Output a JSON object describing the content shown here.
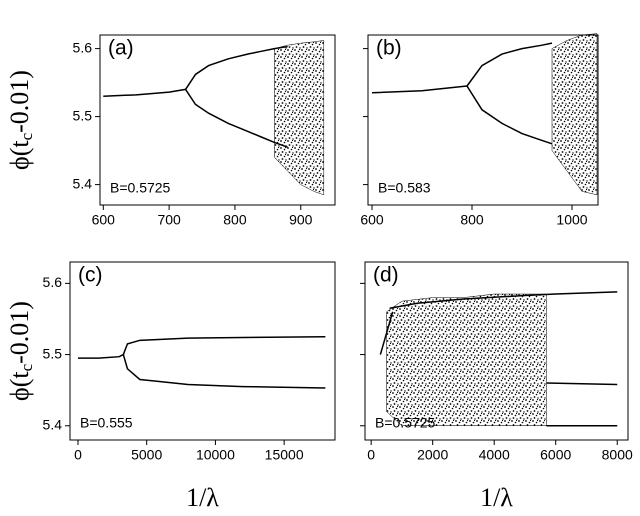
{
  "chart_data": [
    {
      "type": "line",
      "panel_label": "(a)",
      "annotation": "B=0.5725",
      "ylabel_parts": [
        "ϕ(t",
        "c",
        "-0.01)"
      ],
      "xlim": [
        595,
        952
      ],
      "ylim": [
        5.37,
        5.62
      ],
      "xticks": [
        600,
        700,
        800,
        900
      ],
      "yticks": [
        5.4,
        5.5,
        5.6
      ],
      "color": "#000000",
      "series": [
        {
          "x": [
            600,
            650,
            700,
            725
          ],
          "values": [
            5.53,
            5.532,
            5.536,
            5.54
          ]
        },
        {
          "x": [
            725,
            740,
            760,
            790,
            820,
            840,
            860,
            880
          ],
          "values": [
            5.54,
            5.562,
            5.575,
            5.585,
            5.592,
            5.596,
            5.6,
            5.603
          ]
        },
        {
          "x": [
            725,
            740,
            760,
            790,
            820,
            840,
            860,
            880
          ],
          "values": [
            5.54,
            5.518,
            5.505,
            5.49,
            5.478,
            5.47,
            5.462,
            5.455
          ]
        }
      ],
      "areas": [
        {
          "x": [
            860,
            880,
            900,
            920,
            935
          ],
          "upper": [
            5.6,
            5.605,
            5.608,
            5.61,
            5.612
          ],
          "lower": [
            5.44,
            5.42,
            5.4,
            5.39,
            5.385
          ]
        }
      ]
    },
    {
      "type": "line",
      "panel_label": "(b)",
      "annotation": "B=0.583",
      "xlim": [
        592,
        1052
      ],
      "ylim": [
        5.37,
        5.62
      ],
      "xticks": [
        600,
        800,
        1000
      ],
      "yticks": [
        5.4,
        5.5,
        5.6
      ],
      "color": "#000000",
      "series": [
        {
          "x": [
            600,
            700,
            790
          ],
          "values": [
            5.535,
            5.538,
            5.545
          ]
        },
        {
          "x": [
            790,
            820,
            860,
            900,
            940,
            960
          ],
          "values": [
            5.545,
            5.575,
            5.592,
            5.6,
            5.605,
            5.608
          ]
        },
        {
          "x": [
            790,
            820,
            860,
            900,
            940,
            960
          ],
          "values": [
            5.545,
            5.51,
            5.49,
            5.475,
            5.465,
            5.46
          ]
        }
      ],
      "areas": [
        {
          "x": [
            960,
            990,
            1020,
            1050
          ],
          "upper": [
            5.6,
            5.612,
            5.62,
            5.622
          ],
          "lower": [
            5.45,
            5.42,
            5.39,
            5.385
          ]
        }
      ]
    },
    {
      "type": "line",
      "panel_label": "(c)",
      "annotation": "B=0.555",
      "ylabel_parts": [
        "ϕ(t",
        "c",
        "-0.01)"
      ],
      "xlabel": "1/λ",
      "xlim": [
        -580,
        18700
      ],
      "ylim": [
        5.38,
        5.63
      ],
      "xticks": [
        0,
        5000,
        10000,
        15000
      ],
      "yticks": [
        5.4,
        5.5,
        5.6
      ],
      "color": "#000000",
      "series": [
        {
          "x": [
            0,
            1500,
            3000,
            3300
          ],
          "values": [
            5.495,
            5.495,
            5.497,
            5.5
          ]
        },
        {
          "x": [
            3300,
            3600,
            4500,
            8000,
            12000,
            18000
          ],
          "values": [
            5.5,
            5.515,
            5.52,
            5.523,
            5.524,
            5.525
          ]
        },
        {
          "x": [
            3300,
            3600,
            4500,
            8000,
            12000,
            18000
          ],
          "values": [
            5.5,
            5.48,
            5.465,
            5.458,
            5.455,
            5.453
          ]
        }
      ],
      "areas": []
    },
    {
      "type": "line",
      "panel_label": "(d)",
      "annotation": "B=0.5725",
      "xlabel": "1/λ",
      "xlim": [
        -200,
        8350
      ],
      "ylim": [
        5.38,
        5.63
      ],
      "xticks": [
        0,
        2000,
        4000,
        6000,
        8000
      ],
      "yticks": [
        5.4,
        5.5,
        5.6
      ],
      "color": "#000000",
      "series": [
        {
          "x": [
            600,
            1500,
            3000,
            5000,
            6000,
            8000
          ],
          "values": [
            5.565,
            5.572,
            5.578,
            5.583,
            5.585,
            5.588
          ]
        },
        {
          "x": [
            5700,
            8000
          ],
          "values": [
            5.46,
            5.458
          ]
        },
        {
          "x": [
            5700,
            8000
          ],
          "values": [
            5.4,
            5.4
          ]
        },
        {
          "x": [
            300,
            700
          ],
          "values": [
            5.5,
            5.56
          ]
        }
      ],
      "areas": [
        {
          "x": [
            500,
            1000,
            2000,
            3000,
            4000,
            5000,
            5700
          ],
          "upper": [
            5.56,
            5.575,
            5.58,
            5.58,
            5.585,
            5.585,
            5.585
          ],
          "lower": [
            5.42,
            5.4,
            5.4,
            5.4,
            5.4,
            5.4,
            5.4
          ]
        }
      ]
    }
  ]
}
